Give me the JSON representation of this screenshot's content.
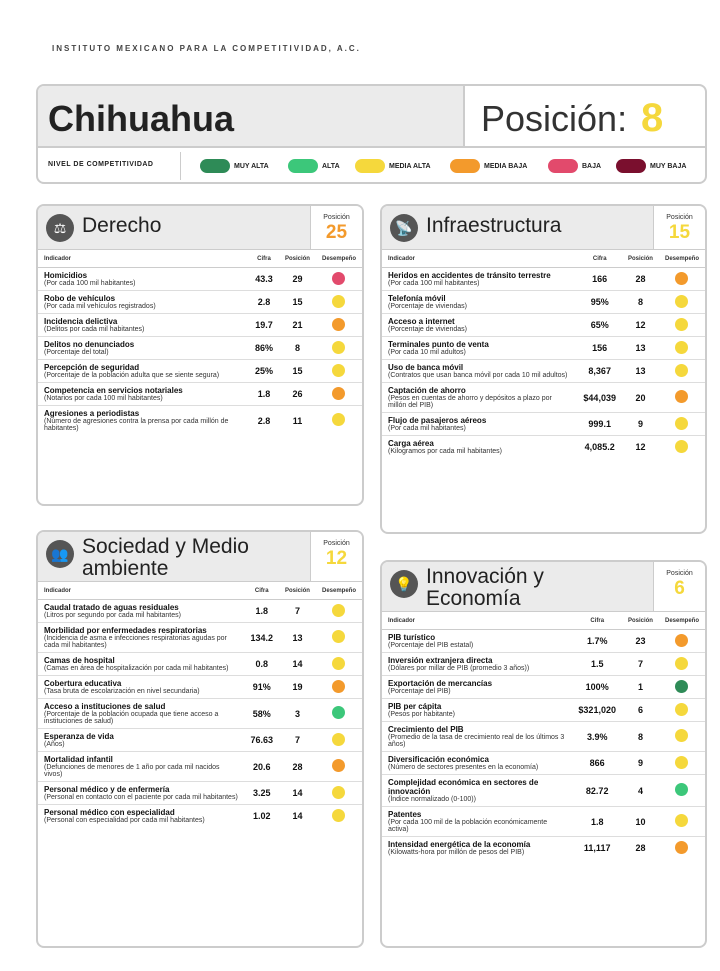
{
  "org": "INSTITUTO MEXICANO PARA LA COMPETITIVIDAD, A.C.",
  "state": "Chihuahua",
  "pos_label": "Posición:",
  "pos_value": "8",
  "legend": {
    "title": "NIVEL DE COMPETITIVIDAD",
    "items": [
      {
        "label": "MUY ALTA",
        "color": "#2e8b57"
      },
      {
        "label": "ALTA",
        "color": "#3cc77a"
      },
      {
        "label": "MEDIA ALTA",
        "color": "#f5d83c"
      },
      {
        "label": "MEDIA BAJA",
        "color": "#f39a2c"
      },
      {
        "label": "BAJA",
        "color": "#e24a6c"
      },
      {
        "label": "MUY BAJA",
        "color": "#7a0f2e"
      }
    ]
  },
  "cols": {
    "indicador": "Indicador",
    "cifra": "Cifra",
    "posicion": "Posición",
    "desempeno": "Desempeño"
  },
  "panels": [
    {
      "id": "derecho",
      "title": "Derecho",
      "icon": "⚖",
      "pos_label": "Posición",
      "pos": "25",
      "pos_color": "#f39a2c",
      "rows": [
        {
          "name": "Homicidios",
          "desc": "(Por cada 100 mil habitantes)",
          "cifra": "43.3",
          "pos": "29",
          "color": "#e24a6c"
        },
        {
          "name": "Robo de vehículos",
          "desc": "(Por cada mil vehículos registrados)",
          "cifra": "2.8",
          "pos": "15",
          "color": "#f5d83c"
        },
        {
          "name": "Incidencia delictiva",
          "desc": "(Delitos por cada mil habitantes)",
          "cifra": "19.7",
          "pos": "21",
          "color": "#f39a2c"
        },
        {
          "name": "Delitos no denunciados",
          "desc": "(Porcentaje del total)",
          "cifra": "86%",
          "pos": "8",
          "color": "#f5d83c"
        },
        {
          "name": "Percepción de seguridad",
          "desc": "(Porcentaje de la población adulta que se siente segura)",
          "cifra": "25%",
          "pos": "15",
          "color": "#f5d83c"
        },
        {
          "name": "Competencia en servicios notariales",
          "desc": "(Notarios por cada 100 mil habitantes)",
          "cifra": "1.8",
          "pos": "26",
          "color": "#f39a2c"
        },
        {
          "name": "Agresiones a periodistas",
          "desc": "(Número de agresiones contra la prensa por cada millón de habitantes)",
          "cifra": "2.8",
          "pos": "11",
          "color": "#f5d83c"
        }
      ]
    },
    {
      "id": "infra",
      "title": "Infraestructura",
      "icon": "📡",
      "pos_label": "Posición",
      "pos": "15",
      "pos_color": "#f5d83c",
      "rows": [
        {
          "name": "Heridos en accidentes de tránsito terrestre",
          "desc": "(Por cada 100 mil habitantes)",
          "cifra": "166",
          "pos": "28",
          "color": "#f39a2c"
        },
        {
          "name": "Telefonía móvil",
          "desc": "(Porcentaje de viviendas)",
          "cifra": "95%",
          "pos": "8",
          "color": "#f5d83c"
        },
        {
          "name": "Acceso a internet",
          "desc": "(Porcentaje de viviendas)",
          "cifra": "65%",
          "pos": "12",
          "color": "#f5d83c"
        },
        {
          "name": "Terminales punto de venta",
          "desc": "(Por cada 10 mil adultos)",
          "cifra": "156",
          "pos": "13",
          "color": "#f5d83c"
        },
        {
          "name": "Uso de banca móvil",
          "desc": "(Contratos que usan banca móvil por cada 10 mil adultos)",
          "cifra": "8,367",
          "pos": "13",
          "color": "#f5d83c"
        },
        {
          "name": "Captación de ahorro",
          "desc": "(Pesos en cuentas de ahorro y depósitos a plazo por millón del PIB)",
          "cifra": "$44,039",
          "pos": "20",
          "color": "#f39a2c"
        },
        {
          "name": "Flujo de pasajeros aéreos",
          "desc": "(Por cada mil habitantes)",
          "cifra": "999.1",
          "pos": "9",
          "color": "#f5d83c"
        },
        {
          "name": "Carga aérea",
          "desc": "(Kilogramos por cada mil habitantes)",
          "cifra": "4,085.2",
          "pos": "12",
          "color": "#f5d83c"
        }
      ]
    },
    {
      "id": "sociedad",
      "title": "Sociedad y Medio ambiente",
      "icon": "👥",
      "pos_label": "Posición",
      "pos": "12",
      "pos_color": "#f5d83c",
      "rows": [
        {
          "name": "Caudal tratado de aguas residuales",
          "desc": "(Litros por segundo por cada mil habitantes)",
          "cifra": "1.8",
          "pos": "7",
          "color": "#f5d83c"
        },
        {
          "name": "Morbilidad por enfermedades respiratorias",
          "desc": "(Incidencia de asma e infecciones respiratorias agudas por cada mil habitantes)",
          "cifra": "134.2",
          "pos": "13",
          "color": "#f5d83c"
        },
        {
          "name": "Camas de hospital",
          "desc": "(Camas en área de hospitalización por cada mil habitantes)",
          "cifra": "0.8",
          "pos": "14",
          "color": "#f5d83c"
        },
        {
          "name": "Cobertura educativa",
          "desc": "(Tasa bruta de escolarización en nivel secundaria)",
          "cifra": "91%",
          "pos": "19",
          "color": "#f39a2c"
        },
        {
          "name": "Acceso a instituciones de salud",
          "desc": "(Porcentaje de la población ocupada que tiene acceso a instituciones de salud)",
          "cifra": "58%",
          "pos": "3",
          "color": "#3cc77a"
        },
        {
          "name": "Esperanza de vida",
          "desc": "(Años)",
          "cifra": "76.63",
          "pos": "7",
          "color": "#f5d83c"
        },
        {
          "name": "Mortalidad infantil",
          "desc": "(Defunciones de menores de 1 año por cada mil nacidos vivos)",
          "cifra": "20.6",
          "pos": "28",
          "color": "#f39a2c"
        },
        {
          "name": "Personal médico y de enfermería",
          "desc": "(Personal en contacto con el paciente por cada mil habitantes)",
          "cifra": "3.25",
          "pos": "14",
          "color": "#f5d83c"
        },
        {
          "name": "Personal médico con especialidad",
          "desc": "(Personal con especialidad por cada mil habitantes)",
          "cifra": "1.02",
          "pos": "14",
          "color": "#f5d83c"
        }
      ]
    },
    {
      "id": "innovacion",
      "title": "Innovación y Economía",
      "icon": "💡",
      "pos_label": "Posición",
      "pos": "6",
      "pos_color": "#f5d83c",
      "rows": [
        {
          "name": "PIB turístico",
          "desc": "(Porcentaje del PIB estatal)",
          "cifra": "1.7%",
          "pos": "23",
          "color": "#f39a2c"
        },
        {
          "name": "Inversión extranjera directa",
          "desc": "(Dólares por millar de PIB (promedio 3 años))",
          "cifra": "1.5",
          "pos": "7",
          "color": "#f5d83c"
        },
        {
          "name": "Exportación de mercancías",
          "desc": "(Porcentaje del PIB)",
          "cifra": "100%",
          "pos": "1",
          "color": "#2e8b57"
        },
        {
          "name": "PIB per cápita",
          "desc": "(Pesos por habitante)",
          "cifra": "$321,020",
          "pos": "6",
          "color": "#f5d83c"
        },
        {
          "name": "Crecimiento del PIB",
          "desc": "(Promedio de la tasa de crecimiento real de los últimos 3 años)",
          "cifra": "3.9%",
          "pos": "8",
          "color": "#f5d83c"
        },
        {
          "name": "Diversificación económica",
          "desc": "(Número de sectores presentes en la economía)",
          "cifra": "866",
          "pos": "9",
          "color": "#f5d83c"
        },
        {
          "name": "Complejidad económica en sectores de innovación",
          "desc": "(Índice normalizado (0-100))",
          "cifra": "82.72",
          "pos": "4",
          "color": "#3cc77a"
        },
        {
          "name": "Patentes",
          "desc": "(Por cada 100 mil de la población económicamente activa)",
          "cifra": "1.8",
          "pos": "10",
          "color": "#f5d83c"
        },
        {
          "name": "Intensidad energética de la economía",
          "desc": "(Kilowatts-hora por millón de pesos del PIB)",
          "cifra": "11,117",
          "pos": "28",
          "color": "#f39a2c"
        }
      ]
    }
  ]
}
